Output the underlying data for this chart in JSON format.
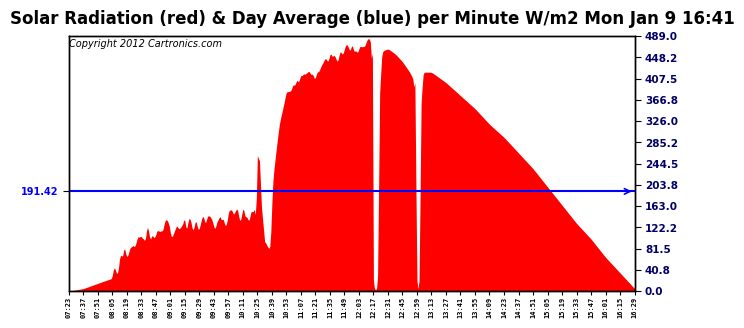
{
  "title": "Solar Radiation (red) & Day Average (blue) per Minute W/m2 Mon Jan 9 16:41",
  "copyright": "Copyright 2012 Cartronics.com",
  "avg_line_value": 191.42,
  "y_max": 489.0,
  "y_min": 0.0,
  "y_ticks": [
    0.0,
    40.8,
    81.5,
    122.2,
    163.0,
    203.8,
    244.5,
    285.2,
    326.0,
    366.8,
    407.5,
    448.2,
    489.0
  ],
  "y_tick_labels": [
    "0.0",
    "40.8",
    "81.5",
    "122.2",
    "163.0",
    "203.8",
    "244.5",
    "285.2",
    "326.0",
    "366.8",
    "407.5",
    "448.2",
    "489.0"
  ],
  "x_labels": [
    "07:23",
    "07:37",
    "07:51",
    "08:05",
    "08:19",
    "08:33",
    "08:47",
    "09:01",
    "09:15",
    "09:29",
    "09:43",
    "09:57",
    "10:11",
    "10:25",
    "10:39",
    "10:53",
    "11:07",
    "11:21",
    "11:35",
    "11:49",
    "12:03",
    "12:17",
    "12:31",
    "12:45",
    "12:59",
    "13:13",
    "13:27",
    "13:41",
    "13:55",
    "14:09",
    "14:23",
    "14:37",
    "14:51",
    "15:05",
    "15:19",
    "15:33",
    "15:47",
    "16:01",
    "16:15",
    "16:29"
  ],
  "fill_color": "#FF0000",
  "line_color": "#0000FF",
  "bg_color": "#FFFFFF",
  "plot_bg_color": "#FFFFFF",
  "title_fontsize": 12,
  "copyright_fontsize": 7
}
